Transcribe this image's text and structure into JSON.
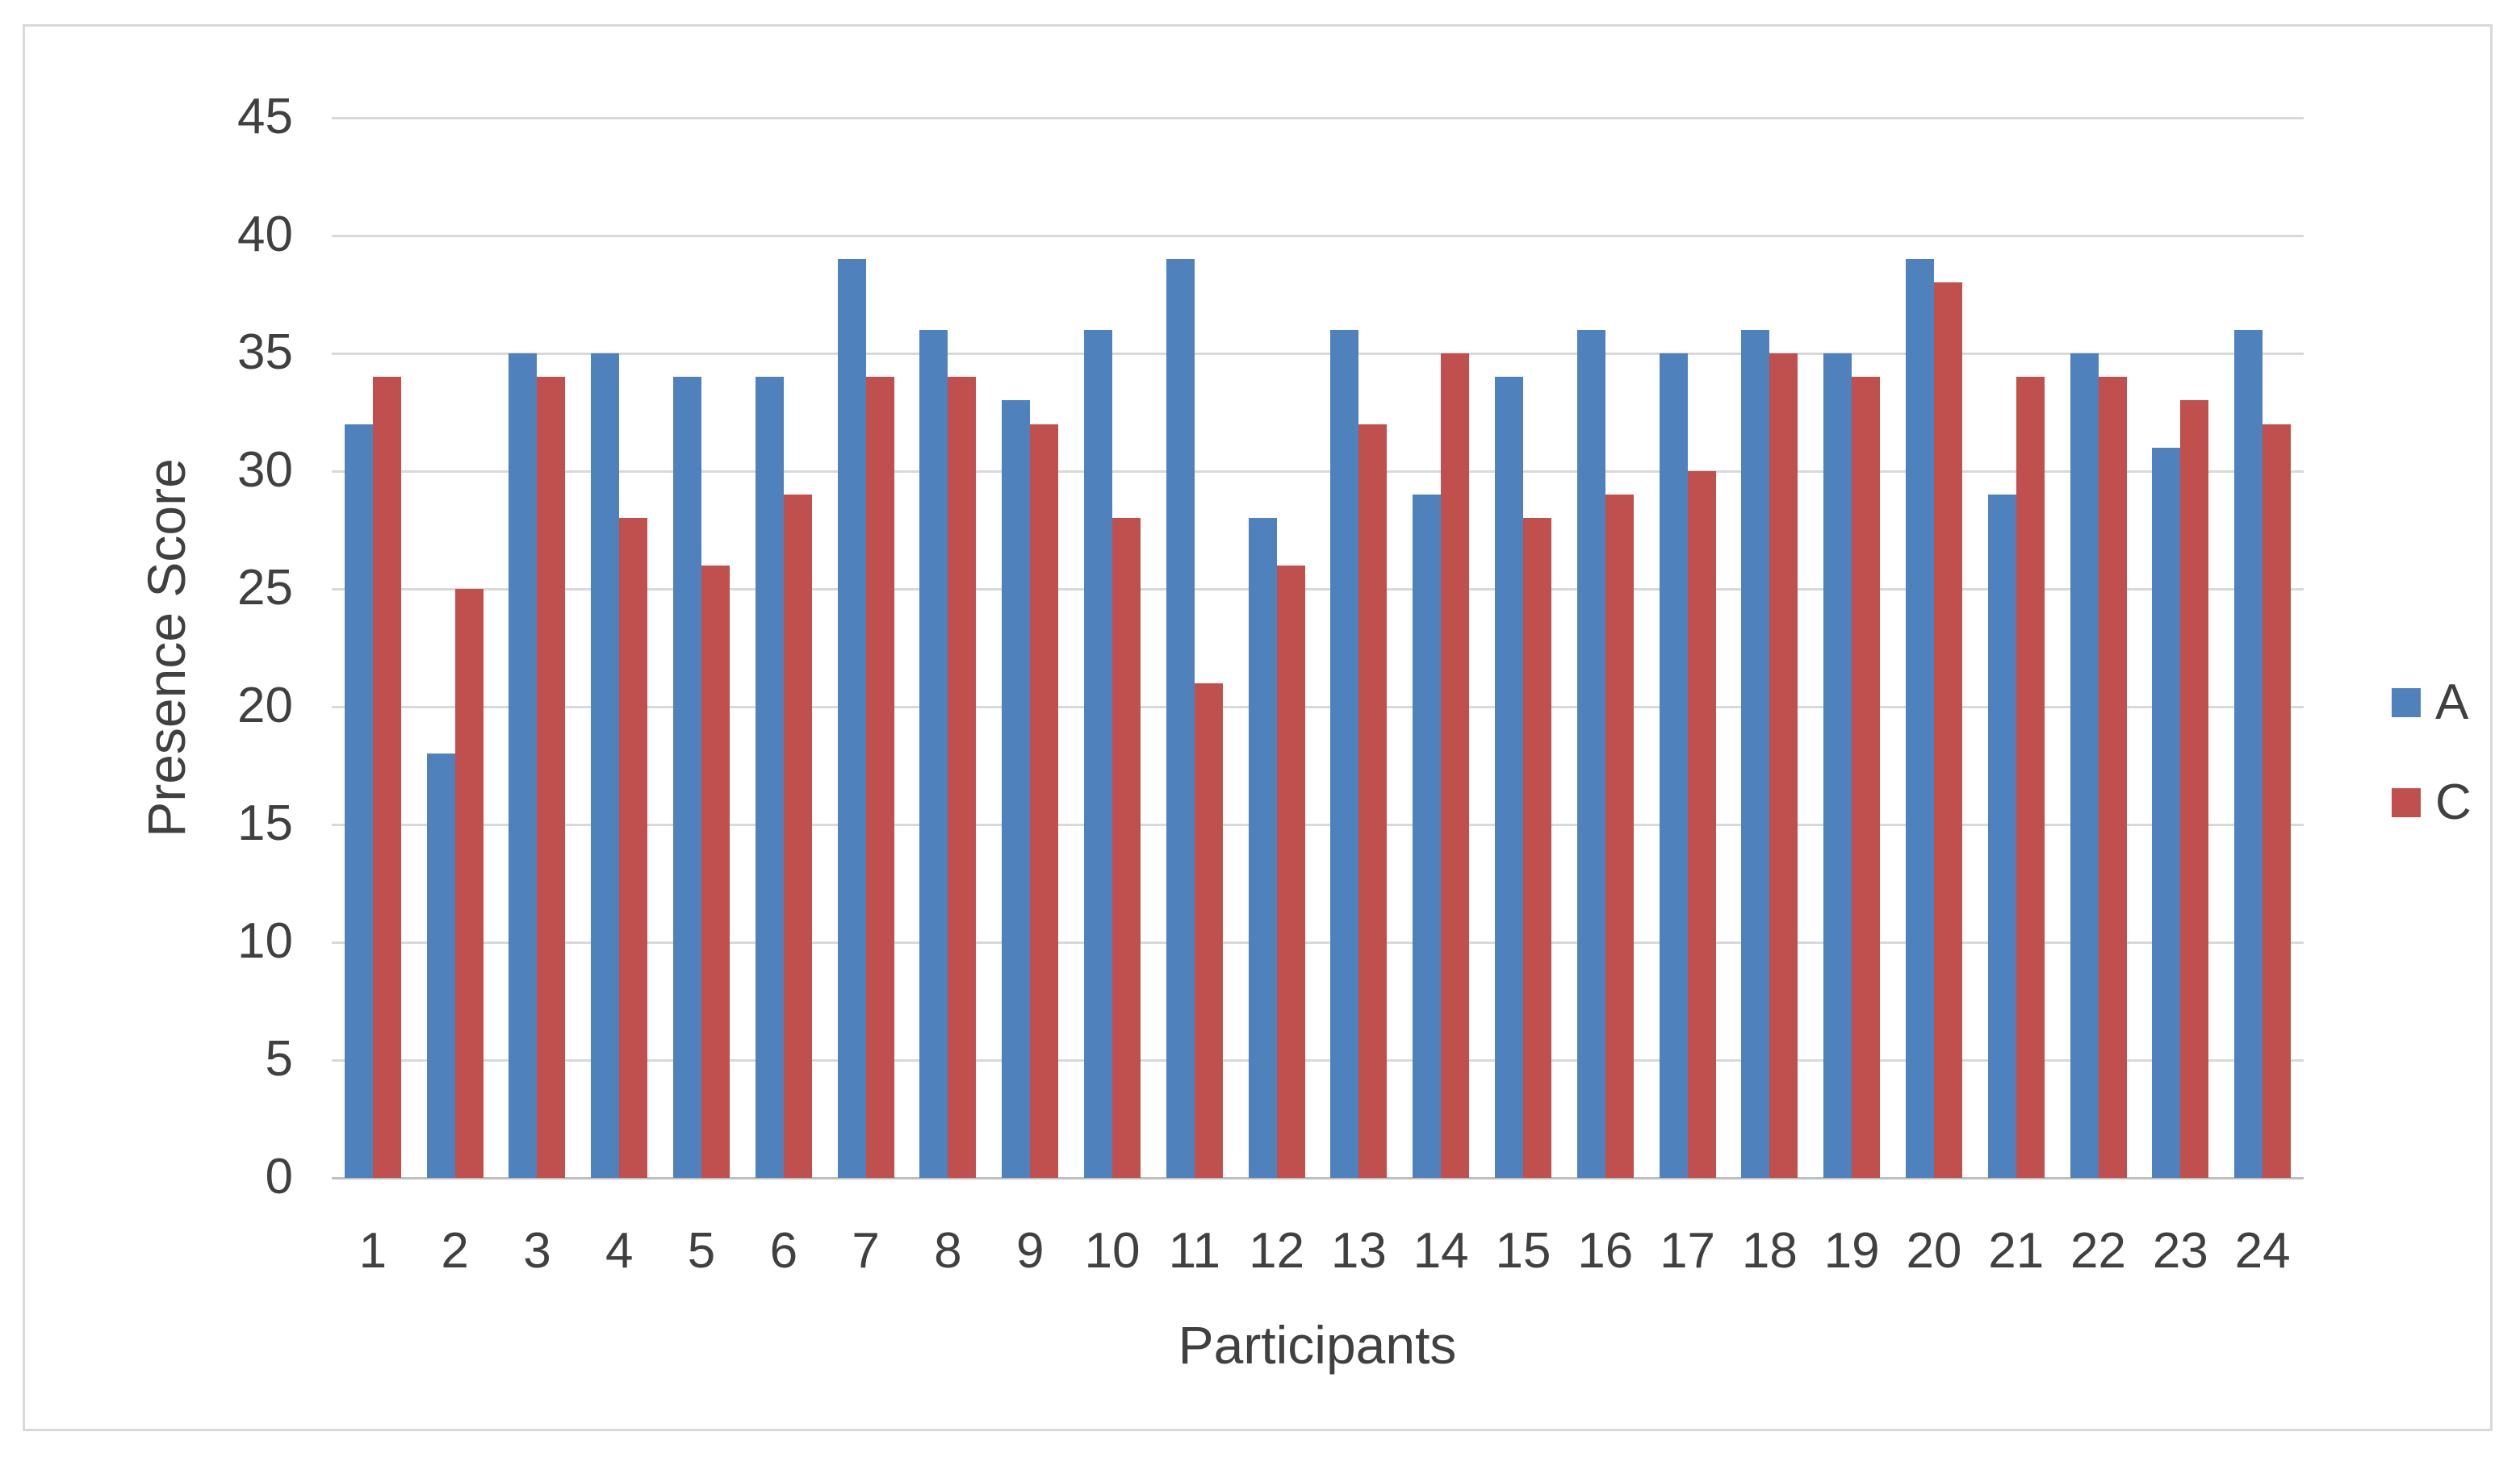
{
  "chart_data": {
    "type": "bar",
    "title": "",
    "xlabel": "Participants",
    "ylabel": "Presence Score",
    "categories": [
      "1",
      "2",
      "3",
      "4",
      "5",
      "6",
      "7",
      "8",
      "9",
      "10",
      "11",
      "12",
      "13",
      "14",
      "15",
      "16",
      "17",
      "18",
      "19",
      "20",
      "21",
      "22",
      "23",
      "24"
    ],
    "series": [
      {
        "name": "A",
        "color": "#4F81BD",
        "values": [
          32,
          18,
          35,
          35,
          34,
          34,
          39,
          36,
          33,
          36,
          39,
          28,
          36,
          29,
          34,
          36,
          35,
          36,
          35,
          39,
          29,
          35,
          31,
          36
        ]
      },
      {
        "name": "C",
        "color": "#C0504D",
        "values": [
          34,
          25,
          34,
          28,
          26,
          29,
          34,
          34,
          32,
          28,
          21,
          26,
          32,
          35,
          28,
          29,
          30,
          35,
          34,
          38,
          34,
          34,
          33,
          32
        ]
      }
    ],
    "ylim": [
      0,
      45
    ],
    "ytick_step": 5,
    "yticks": [
      "0",
      "5",
      "10",
      "15",
      "20",
      "25",
      "30",
      "35",
      "40",
      "45"
    ],
    "grid": "horizontal",
    "legend_position": "right",
    "legend_entries": [
      "A",
      "C"
    ],
    "colors": {
      "grid": "#D9D9D9",
      "axis_line": "#BFBFBF",
      "text": "#404040",
      "frame_border": "#D9D9D9",
      "background": "#FFFFFF"
    }
  }
}
